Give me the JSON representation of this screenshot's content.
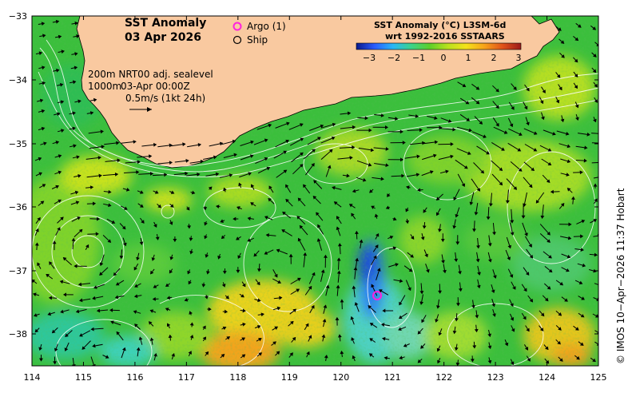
{
  "title": {
    "line1": "SST Anomaly",
    "line2": "03 Apr 2026"
  },
  "legend": {
    "argo": "Argo (1)",
    "ship": "Ship"
  },
  "colorbar": {
    "title1": "SST Anomaly (°C) L3SM-6d",
    "title2": "wrt 1992-2016 SSTAARS",
    "min": -3,
    "max": 3,
    "ticks": [
      "−3",
      "−2",
      "−1",
      "0",
      "1",
      "2",
      "3"
    ],
    "colors": [
      "#0a1a8c",
      "#2a5cff",
      "#29b6f6",
      "#3cd38a",
      "#5ccf2a",
      "#b9e21d",
      "#f4e21a",
      "#f6a21a",
      "#e0521a",
      "#9b1a1a"
    ]
  },
  "info": {
    "contour_line1": "200m  NRT00 adj. sealevel",
    "contour_line2": "1000m",
    "time": "03-Apr 00:00Z",
    "scale": "0.5m/s (1kt 24h)"
  },
  "axes": {
    "x_ticks": [
      "114",
      "115",
      "116",
      "117",
      "118",
      "119",
      "120",
      "121",
      "122",
      "123",
      "124",
      "125"
    ],
    "y_ticks": [
      "−33",
      "−34",
      "−35",
      "−36",
      "−37",
      "−38"
    ],
    "lon_range": [
      114,
      125
    ],
    "lat_range": [
      -33,
      -38.5
    ]
  },
  "argo_float": {
    "lon": 120.72,
    "lat": -37.4,
    "color": "#ff22dd"
  },
  "credit": "© IMOS 10−Apr−2026 11:37 Hobart",
  "palette": {
    "land": "#f9c9a0",
    "ocean_base": "#35c140"
  }
}
